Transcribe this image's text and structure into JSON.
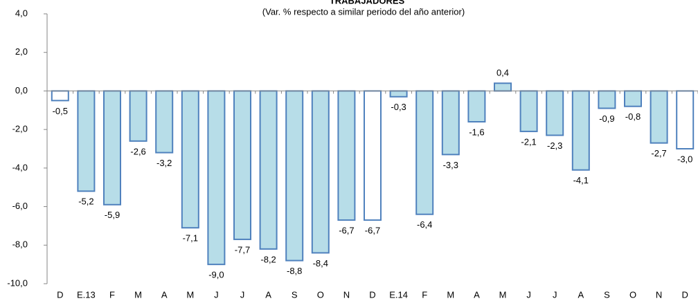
{
  "chart_data": {
    "type": "bar",
    "title": "TRABAJADORES",
    "subtitle": "(Var. % respecto a similar periodo del año anterior)",
    "categories": [
      "D",
      "E.13",
      "F",
      "M",
      "A",
      "M",
      "J",
      "J",
      "A",
      "S",
      "O",
      "N",
      "D",
      "E.14",
      "F",
      "M",
      "A",
      "M",
      "J",
      "J",
      "A",
      "S",
      "O",
      "N",
      "D"
    ],
    "values": [
      -0.5,
      -5.2,
      -5.9,
      -2.6,
      -3.2,
      -7.1,
      -9.0,
      -7.7,
      -8.2,
      -8.8,
      -8.4,
      -6.7,
      -6.7,
      -0.3,
      -6.4,
      -3.3,
      -1.6,
      0.4,
      -2.1,
      -2.3,
      -4.1,
      -0.9,
      -0.8,
      -2.7,
      -3.0
    ],
    "value_labels": [
      "-0,5",
      "-5,2",
      "-5,9",
      "-2,6",
      "-3,2",
      "-7,1",
      "-9,0",
      "-7,7",
      "-8,2",
      "-8,8",
      "-8,4",
      "-6,7",
      "-6,7",
      "-0,3",
      "-6,4",
      "-3,3",
      "-1,6",
      "0,4",
      "-2,1",
      "-2,3",
      "-4,1",
      "-0,9",
      "-0,8",
      "-2,7",
      "-3,0"
    ],
    "colors": [
      "#ffffff",
      "#b7dde8",
      "#b7dde8",
      "#b7dde8",
      "#b7dde8",
      "#b7dde8",
      "#b7dde8",
      "#b7dde8",
      "#b7dde8",
      "#b7dde8",
      "#b7dde8",
      "#b7dde8",
      "#ffffff",
      "#b7dde8",
      "#b7dde8",
      "#b7dde8",
      "#b7dde8",
      "#b7dde8",
      "#b7dde8",
      "#b7dde8",
      "#b7dde8",
      "#b7dde8",
      "#b7dde8",
      "#b7dde8",
      "#ffffff"
    ],
    "edge_color": "#4f81bd",
    "ylim": [
      -10,
      4
    ],
    "yticks": [
      {
        "value": -10,
        "label": "-10,0"
      },
      {
        "value": -8,
        "label": "-8,0"
      },
      {
        "value": -6,
        "label": "-6,0"
      },
      {
        "value": -4,
        "label": "-4,0"
      },
      {
        "value": -2,
        "label": "-2,0"
      },
      {
        "value": 0,
        "label": "0,0"
      },
      {
        "value": 2,
        "label": "2,0"
      },
      {
        "value": 4,
        "label": "4,0"
      }
    ],
    "grid": false
  }
}
